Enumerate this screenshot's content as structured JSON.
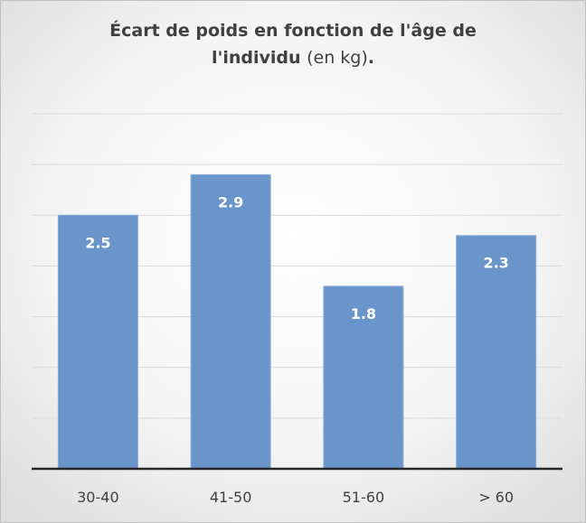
{
  "chart_data": {
    "type": "bar",
    "title": [
      "Écart de poids en fonction de l'âge de",
      "l'individu",
      "(en kg)",
      "."
    ],
    "categories": [
      "30-40",
      "41-50",
      "51-60",
      "> 60"
    ],
    "values": [
      2.5,
      2.9,
      1.8,
      2.3
    ],
    "color": "#6a95cb",
    "ylim": [
      0,
      3.5
    ],
    "yticks": [
      0,
      0.5,
      1,
      1.5,
      2,
      2.5,
      3,
      3.5
    ],
    "grid": true
  }
}
